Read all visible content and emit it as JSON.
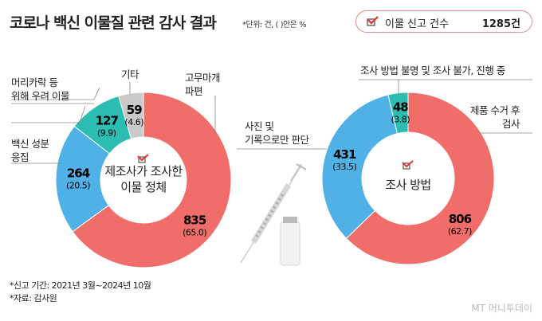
{
  "header": {
    "title": "코로나 백신 이물질 관련 감사 결과",
    "unit_note": "*단위: 건, ( )안은 %"
  },
  "badge": {
    "label": "이물 신고 건수",
    "count": "1285건",
    "icon": "check-box-icon"
  },
  "colors": {
    "red": "#f06d69",
    "blue": "#4fb1e6",
    "teal": "#2bbdb2",
    "gray": "#c9c9c9"
  },
  "chart_data": [
    {
      "type": "pie",
      "donut": true,
      "title": "제조사가 조사한 이물 정체",
      "categories": [
        "고무마개 파편",
        "백신 성분 응집",
        "머리카락 등 위해 우려 이물",
        "기타"
      ],
      "values": [
        835,
        264,
        127,
        59
      ],
      "percents": [
        "(65.0)",
        "(20.5)",
        "(9.9)",
        "(4.6)"
      ],
      "colors": [
        "#f06d69",
        "#4fb1e6",
        "#2bbdb2",
        "#c9c9c9"
      ]
    },
    {
      "type": "pie",
      "donut": true,
      "title": "조사 방법",
      "categories": [
        "제품 수거 후 검사",
        "사진 및 기록으로만 판단",
        "조사 방법 불명 및 조사 불가, 진행 중"
      ],
      "values": [
        806,
        431,
        48
      ],
      "percents": [
        "(62.7)",
        "(33.5)",
        "(3.8)"
      ],
      "colors": [
        "#f06d69",
        "#4fb1e6",
        "#2bbdb2"
      ]
    }
  ],
  "labels": {
    "c1": [
      "고무마개\n파편",
      "백신 성분\n응집",
      "머리카락 등\n위해 우려 이물",
      "기타"
    ],
    "c2": [
      "제품 수거 후\n검사",
      "사진 및\n기록으로만 판단",
      "조사 방법 불명 및 조사 불가, 진행 중"
    ],
    "center1": "제조사가 조사한\n이물 정체",
    "center2": "조사 방법"
  },
  "footer": {
    "period": "*신고 기간: 2021년 3월~2024년 10월",
    "source": "*자료: 감사원",
    "logo": "MT 머니투데이"
  }
}
